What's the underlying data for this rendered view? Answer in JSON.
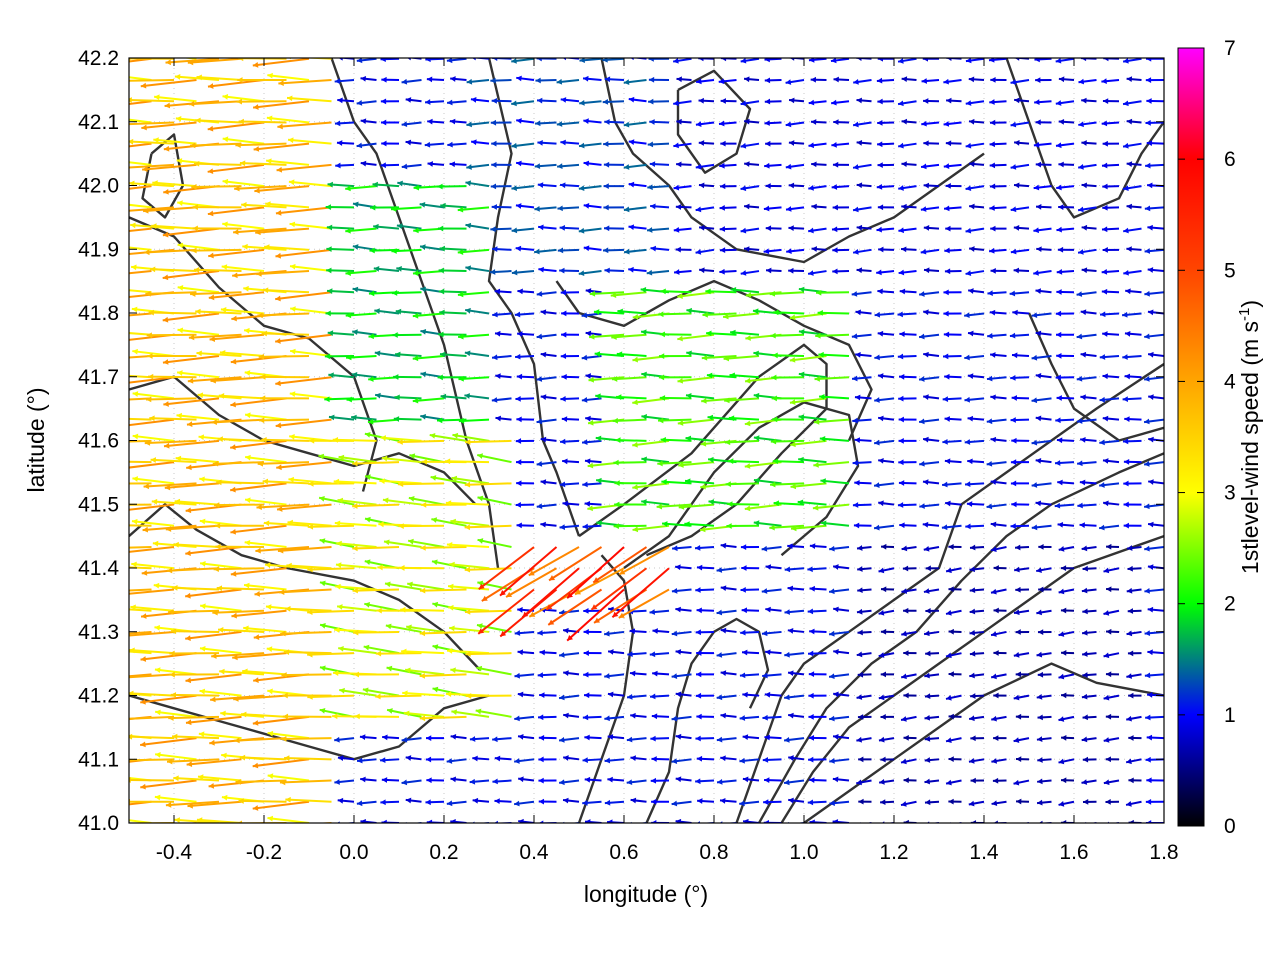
{
  "chart_data": {
    "type": "vector-field",
    "xlabel": "longitude (°)",
    "ylabel": "latitude (°)",
    "colorbar_label": "1stlevel-wind speed (m s",
    "colorbar_label_sup": "-1",
    "colorbar_label_end": ")",
    "xlim": [
      -0.5,
      1.8
    ],
    "ylim": [
      41.0,
      42.2
    ],
    "x_ticks": [
      {
        "value": -0.4,
        "label": "-0.4"
      },
      {
        "value": -0.2,
        "label": "-0.2"
      },
      {
        "value": 0.0,
        "label": "0.0"
      },
      {
        "value": 0.2,
        "label": "0.2"
      },
      {
        "value": 0.4,
        "label": "0.4"
      },
      {
        "value": 0.6,
        "label": "0.6"
      },
      {
        "value": 0.8,
        "label": "0.8"
      },
      {
        "value": 1.0,
        "label": "1.0"
      },
      {
        "value": 1.2,
        "label": "1.2"
      },
      {
        "value": 1.4,
        "label": "1.4"
      },
      {
        "value": 1.6,
        "label": "1.6"
      },
      {
        "value": 1.8,
        "label": "1.8"
      }
    ],
    "y_ticks": [
      {
        "value": 41.0,
        "label": "41.0"
      },
      {
        "value": 41.1,
        "label": "41.1"
      },
      {
        "value": 41.2,
        "label": "41.2"
      },
      {
        "value": 41.3,
        "label": "41.3"
      },
      {
        "value": 41.4,
        "label": "41.4"
      },
      {
        "value": 41.5,
        "label": "41.5"
      },
      {
        "value": 41.6,
        "label": "41.6"
      },
      {
        "value": 41.7,
        "label": "41.7"
      },
      {
        "value": 41.8,
        "label": "41.8"
      },
      {
        "value": 41.9,
        "label": "41.9"
      },
      {
        "value": 42.0,
        "label": "42.0"
      },
      {
        "value": 42.1,
        "label": "42.1"
      },
      {
        "value": 42.2,
        "label": "42.2"
      }
    ],
    "colorbar_range": [
      0,
      7
    ],
    "colorbar_ticks": [
      {
        "value": 0,
        "label": "0"
      },
      {
        "value": 1,
        "label": "1"
      },
      {
        "value": 2,
        "label": "2"
      },
      {
        "value": 3,
        "label": "3"
      },
      {
        "value": 4,
        "label": "4"
      },
      {
        "value": 5,
        "label": "5"
      },
      {
        "value": 6,
        "label": "6"
      },
      {
        "value": 7,
        "label": "7"
      }
    ],
    "colormap": [
      {
        "v": 0,
        "color": "#000000"
      },
      {
        "v": 1,
        "color": "#0000ff"
      },
      {
        "v": 2,
        "color": "#00ff00"
      },
      {
        "v": 3,
        "color": "#ffff00"
      },
      {
        "v": 4,
        "color": "#ffa500"
      },
      {
        "v": 5,
        "color": "#ff4500"
      },
      {
        "v": 6,
        "color": "#ff0000"
      },
      {
        "v": 7,
        "color": "#ff00ff"
      }
    ],
    "grid": true,
    "contour_color": "#333333",
    "wind_regions": [
      {
        "lon": [
          -0.5,
          -0.05
        ],
        "lat": [
          41.0,
          42.2
        ],
        "speed": 3.6,
        "dir_deg": 180
      },
      {
        "lon": [
          -0.05,
          0.35
        ],
        "lat": [
          41.15,
          41.6
        ],
        "speed": 2.9,
        "dir_deg": 175
      },
      {
        "lon": [
          -0.05,
          0.3
        ],
        "lat": [
          41.6,
          42.0
        ],
        "speed": 1.8,
        "dir_deg": 178
      },
      {
        "lon": [
          0.35,
          0.75
        ],
        "lat": [
          41.35,
          41.45
        ],
        "speed": 5.0,
        "dir_deg": 215
      },
      {
        "lon": [
          0.6,
          1.15
        ],
        "lat": [
          41.45,
          41.85
        ],
        "speed": 2.2,
        "dir_deg": 180
      },
      {
        "lon": [
          0.25,
          0.75
        ],
        "lat": [
          41.85,
          42.2
        ],
        "speed": 1.2,
        "dir_deg": 180
      },
      {
        "lon": [
          1.15,
          1.8
        ],
        "lat": [
          41.0,
          41.45
        ],
        "speed": 0.7,
        "dir_deg": 185
      },
      {
        "lon": [
          0.75,
          1.8
        ],
        "lat": [
          41.85,
          42.2
        ],
        "speed": 0.9,
        "dir_deg": 182
      }
    ],
    "contours": [
      [
        [
          -0.5,
          41.95
        ],
        [
          -0.4,
          41.92
        ],
        [
          -0.3,
          41.84
        ],
        [
          -0.2,
          41.78
        ],
        [
          -0.1,
          41.76
        ],
        [
          0.0,
          41.7
        ],
        [
          0.05,
          41.6
        ],
        [
          0.02,
          41.52
        ]
      ],
      [
        [
          -0.5,
          41.68
        ],
        [
          -0.4,
          41.7
        ],
        [
          -0.3,
          41.64
        ],
        [
          -0.2,
          41.6
        ],
        [
          -0.1,
          41.58
        ],
        [
          0.0,
          41.56
        ],
        [
          0.1,
          41.58
        ],
        [
          0.2,
          41.55
        ],
        [
          0.27,
          41.5
        ]
      ],
      [
        [
          -0.5,
          41.45
        ],
        [
          -0.42,
          41.5
        ],
        [
          -0.35,
          41.46
        ],
        [
          -0.25,
          41.42
        ],
        [
          -0.15,
          41.4
        ],
        [
          0.0,
          41.38
        ],
        [
          0.1,
          41.35
        ],
        [
          0.2,
          41.3
        ],
        [
          0.28,
          41.24
        ]
      ],
      [
        [
          -0.5,
          41.2
        ],
        [
          -0.4,
          41.18
        ],
        [
          -0.3,
          41.16
        ],
        [
          -0.2,
          41.14
        ],
        [
          -0.1,
          41.12
        ],
        [
          0.0,
          41.1
        ],
        [
          0.1,
          41.12
        ],
        [
          0.2,
          41.18
        ],
        [
          0.3,
          41.2
        ]
      ],
      [
        [
          -0.05,
          42.2
        ],
        [
          0.0,
          42.1
        ],
        [
          0.05,
          42.05
        ],
        [
          0.1,
          41.95
        ],
        [
          0.15,
          41.85
        ],
        [
          0.2,
          41.75
        ],
        [
          0.25,
          41.6
        ],
        [
          0.3,
          41.5
        ],
        [
          0.32,
          41.4
        ]
      ],
      [
        [
          0.3,
          42.2
        ],
        [
          0.35,
          42.05
        ],
        [
          0.32,
          41.95
        ],
        [
          0.3,
          41.85
        ],
        [
          0.35,
          41.8
        ],
        [
          0.4,
          41.72
        ],
        [
          0.42,
          41.6
        ],
        [
          0.45,
          41.55
        ],
        [
          0.5,
          41.45
        ]
      ],
      [
        [
          0.55,
          42.2
        ],
        [
          0.58,
          42.1
        ],
        [
          0.62,
          42.05
        ],
        [
          0.7,
          42.0
        ],
        [
          0.75,
          41.95
        ],
        [
          0.85,
          41.9
        ],
        [
          1.0,
          41.88
        ],
        [
          1.1,
          41.92
        ],
        [
          1.2,
          41.95
        ],
        [
          1.3,
          42.0
        ],
        [
          1.4,
          42.05
        ]
      ],
      [
        [
          0.5,
          41.45
        ],
        [
          0.6,
          41.5
        ],
        [
          0.75,
          41.58
        ],
        [
          0.9,
          41.7
        ],
        [
          1.0,
          41.75
        ],
        [
          1.05,
          41.72
        ],
        [
          1.05,
          41.65
        ],
        [
          0.95,
          41.58
        ],
        [
          0.85,
          41.5
        ],
        [
          0.75,
          41.45
        ],
        [
          0.65,
          41.42
        ]
      ],
      [
        [
          0.6,
          41.4
        ],
        [
          0.7,
          41.45
        ],
        [
          0.8,
          41.55
        ],
        [
          0.9,
          41.62
        ],
        [
          1.0,
          41.66
        ],
        [
          1.1,
          41.64
        ],
        [
          1.12,
          41.56
        ],
        [
          1.05,
          41.48
        ],
        [
          0.95,
          41.42
        ]
      ],
      [
        [
          0.5,
          41.0
        ],
        [
          0.55,
          41.1
        ],
        [
          0.6,
          41.2
        ],
        [
          0.62,
          41.3
        ],
        [
          0.6,
          41.38
        ],
        [
          0.55,
          41.42
        ]
      ],
      [
        [
          0.85,
          41.0
        ],
        [
          0.9,
          41.1
        ],
        [
          0.95,
          41.2
        ],
        [
          1.0,
          41.25
        ],
        [
          1.1,
          41.3
        ],
        [
          1.2,
          41.35
        ],
        [
          1.3,
          41.4
        ],
        [
          1.35,
          41.5
        ],
        [
          1.45,
          41.55
        ],
        [
          1.55,
          41.6
        ],
        [
          1.65,
          41.65
        ],
        [
          1.8,
          41.72
        ]
      ],
      [
        [
          0.9,
          41.0
        ],
        [
          0.98,
          41.1
        ],
        [
          1.05,
          41.18
        ],
        [
          1.15,
          41.25
        ],
        [
          1.25,
          41.3
        ],
        [
          1.35,
          41.38
        ],
        [
          1.45,
          41.45
        ],
        [
          1.55,
          41.5
        ],
        [
          1.7,
          41.55
        ],
        [
          1.8,
          41.58
        ]
      ],
      [
        [
          0.95,
          41.0
        ],
        [
          1.02,
          41.08
        ],
        [
          1.1,
          41.15
        ],
        [
          1.2,
          41.2
        ],
        [
          1.3,
          41.25
        ],
        [
          1.4,
          41.3
        ],
        [
          1.5,
          41.35
        ],
        [
          1.6,
          41.4
        ],
        [
          1.8,
          41.45
        ]
      ],
      [
        [
          1.0,
          41.0
        ],
        [
          1.1,
          41.05
        ],
        [
          1.2,
          41.1
        ],
        [
          1.3,
          41.15
        ],
        [
          1.4,
          41.2
        ],
        [
          1.55,
          41.25
        ],
        [
          1.65,
          41.22
        ],
        [
          1.8,
          41.2
        ]
      ],
      [
        [
          0.65,
          41.0
        ],
        [
          0.7,
          41.08
        ],
        [
          0.72,
          41.18
        ],
        [
          0.75,
          41.25
        ],
        [
          0.8,
          41.3
        ],
        [
          0.85,
          41.32
        ],
        [
          0.9,
          41.3
        ],
        [
          0.92,
          41.24
        ],
        [
          0.88,
          41.18
        ]
      ],
      [
        [
          0.45,
          41.85
        ],
        [
          0.5,
          41.8
        ],
        [
          0.6,
          41.78
        ],
        [
          0.7,
          41.82
        ],
        [
          0.8,
          41.85
        ],
        [
          0.9,
          41.82
        ],
        [
          1.0,
          41.78
        ],
        [
          1.1,
          41.75
        ],
        [
          1.15,
          41.68
        ],
        [
          1.1,
          41.6
        ]
      ],
      [
        [
          1.45,
          42.2
        ],
        [
          1.5,
          42.1
        ],
        [
          1.55,
          42.0
        ],
        [
          1.6,
          41.95
        ],
        [
          1.7,
          41.98
        ],
        [
          1.75,
          42.05
        ],
        [
          1.8,
          42.1
        ]
      ],
      [
        [
          1.5,
          41.8
        ],
        [
          1.55,
          41.72
        ],
        [
          1.6,
          41.65
        ],
        [
          1.7,
          41.6
        ],
        [
          1.8,
          41.62
        ]
      ],
      [
        [
          -0.45,
          42.05
        ],
        [
          -0.4,
          42.08
        ],
        [
          -0.38,
          42.0
        ],
        [
          -0.42,
          41.95
        ],
        [
          -0.47,
          41.98
        ],
        [
          -0.45,
          42.05
        ]
      ],
      [
        [
          0.72,
          42.15
        ],
        [
          0.8,
          42.18
        ],
        [
          0.88,
          42.12
        ],
        [
          0.85,
          42.05
        ],
        [
          0.78,
          42.02
        ],
        [
          0.72,
          42.08
        ],
        [
          0.72,
          42.15
        ]
      ]
    ]
  }
}
